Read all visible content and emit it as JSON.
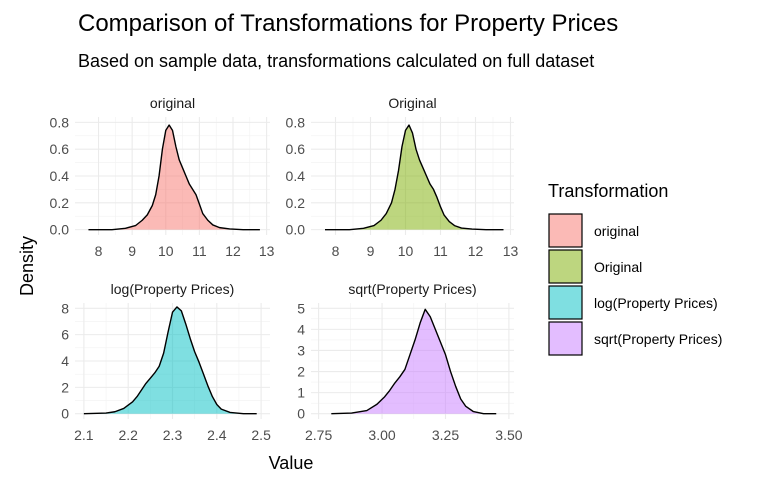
{
  "chart_data": {
    "type": "area",
    "title": "Comparison of Transformations for Property Prices",
    "subtitle": "Based on sample data, transformations calculated on full dataset",
    "xlabel": "Value",
    "ylabel": "Density",
    "grid": true,
    "legend": {
      "title": "Transformation",
      "position": "right",
      "entries": [
        "original",
        "Original",
        "log(Property Prices)",
        "sqrt(Property Prices)"
      ]
    },
    "panels": [
      {
        "label": "original",
        "color": "#F8766D",
        "xlim": [
          7.3,
          13.1
        ],
        "ylim": [
          -0.04,
          0.84
        ],
        "xticks": [
          8,
          9,
          10,
          11,
          12,
          13
        ],
        "xtick_labels": [
          "8",
          "9",
          "10",
          "11",
          "12",
          "13"
        ],
        "yticks": [
          0,
          0.2,
          0.4,
          0.6,
          0.8
        ],
        "ytick_labels": [
          "0.0",
          "0.2",
          "0.4",
          "0.6",
          "0.8"
        ],
        "x": [
          7.7,
          8.4,
          8.8,
          9.1,
          9.3,
          9.45,
          9.6,
          9.7,
          9.8,
          9.9,
          10.0,
          10.1,
          10.2,
          10.3,
          10.4,
          10.5,
          10.6,
          10.7,
          10.8,
          10.9,
          11.0,
          11.1,
          11.25,
          11.4,
          11.6,
          11.9,
          12.3,
          12.8
        ],
        "y": [
          0.0,
          0.0,
          0.01,
          0.03,
          0.07,
          0.11,
          0.18,
          0.26,
          0.4,
          0.6,
          0.74,
          0.78,
          0.74,
          0.62,
          0.52,
          0.46,
          0.4,
          0.34,
          0.3,
          0.26,
          0.19,
          0.12,
          0.07,
          0.035,
          0.015,
          0.005,
          0.0,
          0.0
        ]
      },
      {
        "label": "Original",
        "color": "#7CAE00",
        "xlim": [
          7.3,
          13.1
        ],
        "ylim": [
          -0.04,
          0.84
        ],
        "xticks": [
          8,
          9,
          10,
          11,
          12,
          13
        ],
        "xtick_labels": [
          "8",
          "9",
          "10",
          "11",
          "12",
          "13"
        ],
        "yticks": [
          0,
          0.2,
          0.4,
          0.6,
          0.8
        ],
        "ytick_labels": [
          "0.0",
          "0.2",
          "0.4",
          "0.6",
          "0.8"
        ],
        "x": [
          7.7,
          8.4,
          8.8,
          9.1,
          9.3,
          9.45,
          9.6,
          9.7,
          9.8,
          9.9,
          10.0,
          10.1,
          10.2,
          10.3,
          10.4,
          10.5,
          10.6,
          10.7,
          10.8,
          10.9,
          11.0,
          11.1,
          11.25,
          11.4,
          11.6,
          11.9,
          12.3,
          12.8
        ],
        "y": [
          0.0,
          0.0,
          0.01,
          0.03,
          0.07,
          0.12,
          0.2,
          0.3,
          0.44,
          0.62,
          0.74,
          0.78,
          0.72,
          0.6,
          0.52,
          0.46,
          0.4,
          0.34,
          0.3,
          0.24,
          0.17,
          0.11,
          0.06,
          0.03,
          0.012,
          0.004,
          0.0,
          0.0
        ]
      },
      {
        "label": "log(Property Prices)",
        "color": "#00BFC4",
        "xlim": [
          2.08,
          2.52
        ],
        "ylim": [
          -0.4,
          8.4
        ],
        "xticks": [
          2.1,
          2.2,
          2.3,
          2.4,
          2.5
        ],
        "xtick_labels": [
          "2.1",
          "2.2",
          "2.3",
          "2.4",
          "2.5"
        ],
        "yticks": [
          0,
          2,
          4,
          6,
          8
        ],
        "ytick_labels": [
          "0",
          "2",
          "4",
          "6",
          "8"
        ],
        "x": [
          2.1,
          2.15,
          2.17,
          2.19,
          2.21,
          2.22,
          2.23,
          2.24,
          2.25,
          2.26,
          2.27,
          2.28,
          2.29,
          2.3,
          2.31,
          2.32,
          2.33,
          2.34,
          2.35,
          2.36,
          2.37,
          2.38,
          2.39,
          2.4,
          2.41,
          2.43,
          2.46,
          2.49
        ],
        "y": [
          0.0,
          0.05,
          0.15,
          0.4,
          0.9,
          1.3,
          1.8,
          2.3,
          2.7,
          3.1,
          3.6,
          4.6,
          6.2,
          7.7,
          8.1,
          7.8,
          6.8,
          5.7,
          4.7,
          3.9,
          3.0,
          2.1,
          1.3,
          0.7,
          0.35,
          0.1,
          0.0,
          0.0
        ]
      },
      {
        "label": "sqrt(Property Prices)",
        "color": "#C77CFF",
        "xlim": [
          2.72,
          3.52
        ],
        "ylim": [
          -0.25,
          5.25
        ],
        "xticks": [
          2.75,
          3.0,
          3.25,
          3.5
        ],
        "xtick_labels": [
          "2.75",
          "3.00",
          "3.25",
          "3.50"
        ],
        "yticks": [
          0,
          1,
          2,
          3,
          4,
          5
        ],
        "ytick_labels": [
          "0",
          "1",
          "2",
          "3",
          "4",
          "5"
        ],
        "x": [
          2.8,
          2.88,
          2.94,
          2.98,
          3.01,
          3.03,
          3.05,
          3.07,
          3.09,
          3.11,
          3.13,
          3.15,
          3.17,
          3.19,
          3.21,
          3.23,
          3.25,
          3.27,
          3.29,
          3.31,
          3.33,
          3.36,
          3.4,
          3.45
        ],
        "y": [
          0.0,
          0.03,
          0.15,
          0.45,
          0.8,
          1.1,
          1.45,
          1.75,
          2.1,
          2.8,
          3.5,
          4.3,
          4.95,
          4.6,
          4.0,
          3.4,
          2.8,
          2.0,
          1.3,
          0.7,
          0.35,
          0.1,
          0.0,
          0.0
        ]
      }
    ]
  }
}
